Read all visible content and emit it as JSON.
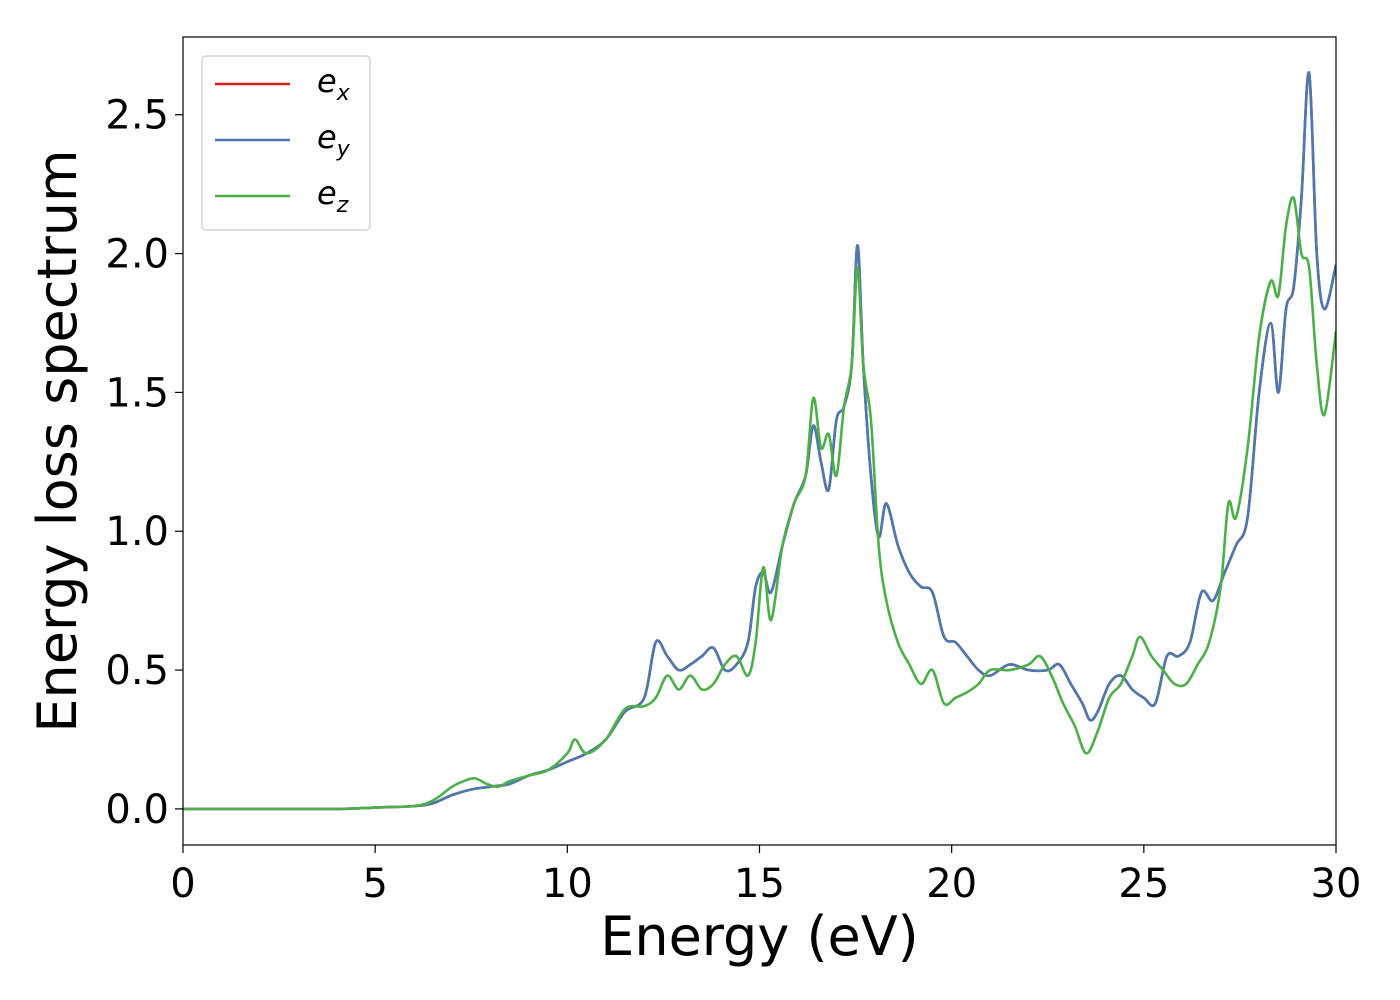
{
  "chart_data": {
    "type": "line",
    "xlabel": "Energy (eV)",
    "ylabel": "Energy loss spectrum",
    "xlim": [
      0,
      30
    ],
    "ylim": [
      -0.13,
      2.78
    ],
    "xticks": [
      "0",
      "5",
      "10",
      "15",
      "20",
      "25",
      "30"
    ],
    "yticks": [
      "0.0",
      "0.5",
      "1.0",
      "1.5",
      "2.0",
      "2.5"
    ],
    "grid": false,
    "legend_position": "top-left",
    "series": [
      {
        "name": "e_x",
        "label_main": "e",
        "label_sub": "x",
        "color": "#e41a1c",
        "x": [
          0,
          2,
          4,
          5,
          6,
          6.5,
          7,
          7.5,
          8,
          8.5,
          9,
          9.5,
          10,
          10.5,
          11,
          11.5,
          12,
          12.3,
          12.6,
          12.9,
          13.2,
          13.5,
          13.8,
          14.1,
          14.4,
          14.7,
          14.9,
          15.1,
          15.3,
          15.6,
          15.9,
          16.2,
          16.4,
          16.6,
          16.8,
          17.0,
          17.2,
          17.4,
          17.55,
          17.7,
          17.9,
          18.1,
          18.3,
          18.6,
          18.9,
          19.2,
          19.5,
          19.8,
          20.1,
          20.4,
          20.7,
          21.0,
          21.5,
          22.0,
          22.5,
          22.8,
          23.1,
          23.4,
          23.6,
          23.8,
          24.1,
          24.4,
          24.7,
          25.0,
          25.3,
          25.6,
          25.9,
          26.2,
          26.5,
          26.8,
          27.1,
          27.4,
          27.7,
          28.0,
          28.3,
          28.5,
          28.7,
          28.9,
          29.1,
          29.3,
          29.5,
          29.7,
          30.0
        ],
        "y": [
          0.0,
          0.0,
          0.0,
          0.005,
          0.01,
          0.02,
          0.05,
          0.07,
          0.08,
          0.09,
          0.12,
          0.14,
          0.17,
          0.2,
          0.25,
          0.35,
          0.4,
          0.6,
          0.55,
          0.5,
          0.52,
          0.55,
          0.58,
          0.5,
          0.52,
          0.6,
          0.8,
          0.85,
          0.78,
          0.95,
          1.1,
          1.2,
          1.38,
          1.25,
          1.15,
          1.4,
          1.45,
          1.6,
          2.03,
          1.6,
          1.2,
          0.98,
          1.1,
          0.95,
          0.85,
          0.8,
          0.78,
          0.62,
          0.6,
          0.55,
          0.5,
          0.48,
          0.52,
          0.5,
          0.5,
          0.52,
          0.45,
          0.38,
          0.32,
          0.35,
          0.45,
          0.48,
          0.43,
          0.4,
          0.38,
          0.55,
          0.55,
          0.6,
          0.78,
          0.75,
          0.85,
          0.95,
          1.05,
          1.5,
          1.75,
          1.5,
          1.8,
          1.88,
          2.2,
          2.65,
          2.0,
          1.8,
          1.96
        ]
      },
      {
        "name": "e_y",
        "label_main": "e",
        "label_sub": "y",
        "color": "#4a7ab0",
        "x": [
          0,
          2,
          4,
          5,
          6,
          6.5,
          7,
          7.5,
          8,
          8.5,
          9,
          9.5,
          10,
          10.5,
          11,
          11.5,
          12,
          12.3,
          12.6,
          12.9,
          13.2,
          13.5,
          13.8,
          14.1,
          14.4,
          14.7,
          14.9,
          15.1,
          15.3,
          15.6,
          15.9,
          16.2,
          16.4,
          16.6,
          16.8,
          17.0,
          17.2,
          17.4,
          17.55,
          17.7,
          17.9,
          18.1,
          18.3,
          18.6,
          18.9,
          19.2,
          19.5,
          19.8,
          20.1,
          20.4,
          20.7,
          21.0,
          21.5,
          22.0,
          22.5,
          22.8,
          23.1,
          23.4,
          23.6,
          23.8,
          24.1,
          24.4,
          24.7,
          25.0,
          25.3,
          25.6,
          25.9,
          26.2,
          26.5,
          26.8,
          27.1,
          27.4,
          27.7,
          28.0,
          28.3,
          28.5,
          28.7,
          28.9,
          29.1,
          29.3,
          29.5,
          29.7,
          30.0
        ],
        "y": [
          0.0,
          0.0,
          0.0,
          0.005,
          0.01,
          0.02,
          0.05,
          0.07,
          0.08,
          0.09,
          0.12,
          0.14,
          0.17,
          0.2,
          0.25,
          0.35,
          0.4,
          0.6,
          0.55,
          0.5,
          0.52,
          0.55,
          0.58,
          0.5,
          0.52,
          0.6,
          0.8,
          0.85,
          0.78,
          0.95,
          1.1,
          1.2,
          1.38,
          1.25,
          1.15,
          1.4,
          1.45,
          1.6,
          2.03,
          1.6,
          1.2,
          0.98,
          1.1,
          0.95,
          0.85,
          0.8,
          0.78,
          0.62,
          0.6,
          0.55,
          0.5,
          0.48,
          0.52,
          0.5,
          0.5,
          0.52,
          0.45,
          0.38,
          0.32,
          0.35,
          0.45,
          0.48,
          0.43,
          0.4,
          0.38,
          0.55,
          0.55,
          0.6,
          0.78,
          0.75,
          0.85,
          0.95,
          1.05,
          1.5,
          1.75,
          1.5,
          1.8,
          1.88,
          2.2,
          2.65,
          2.0,
          1.8,
          1.96
        ]
      },
      {
        "name": "e_z",
        "label_main": "e",
        "label_sub": "z",
        "color": "#4daf4a",
        "x": [
          0,
          2,
          4,
          5,
          6,
          6.5,
          7,
          7.3,
          7.6,
          7.9,
          8.2,
          8.5,
          9,
          9.5,
          10,
          10.2,
          10.5,
          11,
          11.5,
          12,
          12.3,
          12.6,
          12.9,
          13.2,
          13.5,
          13.8,
          14.1,
          14.4,
          14.7,
          14.9,
          15.1,
          15.3,
          15.6,
          15.9,
          16.2,
          16.4,
          16.6,
          16.8,
          17.0,
          17.2,
          17.4,
          17.55,
          17.7,
          17.9,
          18.1,
          18.3,
          18.6,
          18.9,
          19.2,
          19.5,
          19.8,
          20.1,
          20.4,
          20.7,
          21.0,
          21.5,
          22.0,
          22.3,
          22.6,
          22.9,
          23.2,
          23.5,
          23.8,
          24.1,
          24.4,
          24.7,
          24.9,
          25.2,
          25.5,
          25.8,
          26.1,
          26.4,
          26.7,
          27.0,
          27.2,
          27.4,
          27.7,
          28.0,
          28.3,
          28.5,
          28.7,
          28.9,
          29.1,
          29.3,
          29.5,
          29.7,
          30.0
        ],
        "y": [
          0.0,
          0.0,
          0.0,
          0.005,
          0.01,
          0.03,
          0.08,
          0.1,
          0.11,
          0.09,
          0.08,
          0.1,
          0.12,
          0.14,
          0.2,
          0.25,
          0.2,
          0.25,
          0.36,
          0.37,
          0.4,
          0.48,
          0.43,
          0.48,
          0.43,
          0.45,
          0.52,
          0.55,
          0.48,
          0.6,
          0.87,
          0.68,
          0.95,
          1.1,
          1.2,
          1.48,
          1.3,
          1.35,
          1.2,
          1.45,
          1.6,
          1.95,
          1.6,
          1.4,
          0.95,
          0.75,
          0.6,
          0.52,
          0.45,
          0.5,
          0.38,
          0.4,
          0.42,
          0.45,
          0.5,
          0.5,
          0.52,
          0.55,
          0.48,
          0.38,
          0.3,
          0.2,
          0.28,
          0.4,
          0.45,
          0.55,
          0.62,
          0.55,
          0.5,
          0.45,
          0.45,
          0.52,
          0.6,
          0.8,
          1.1,
          1.05,
          1.3,
          1.7,
          1.9,
          1.85,
          2.1,
          2.2,
          2.0,
          1.95,
          1.6,
          1.42,
          1.72
        ]
      }
    ]
  }
}
